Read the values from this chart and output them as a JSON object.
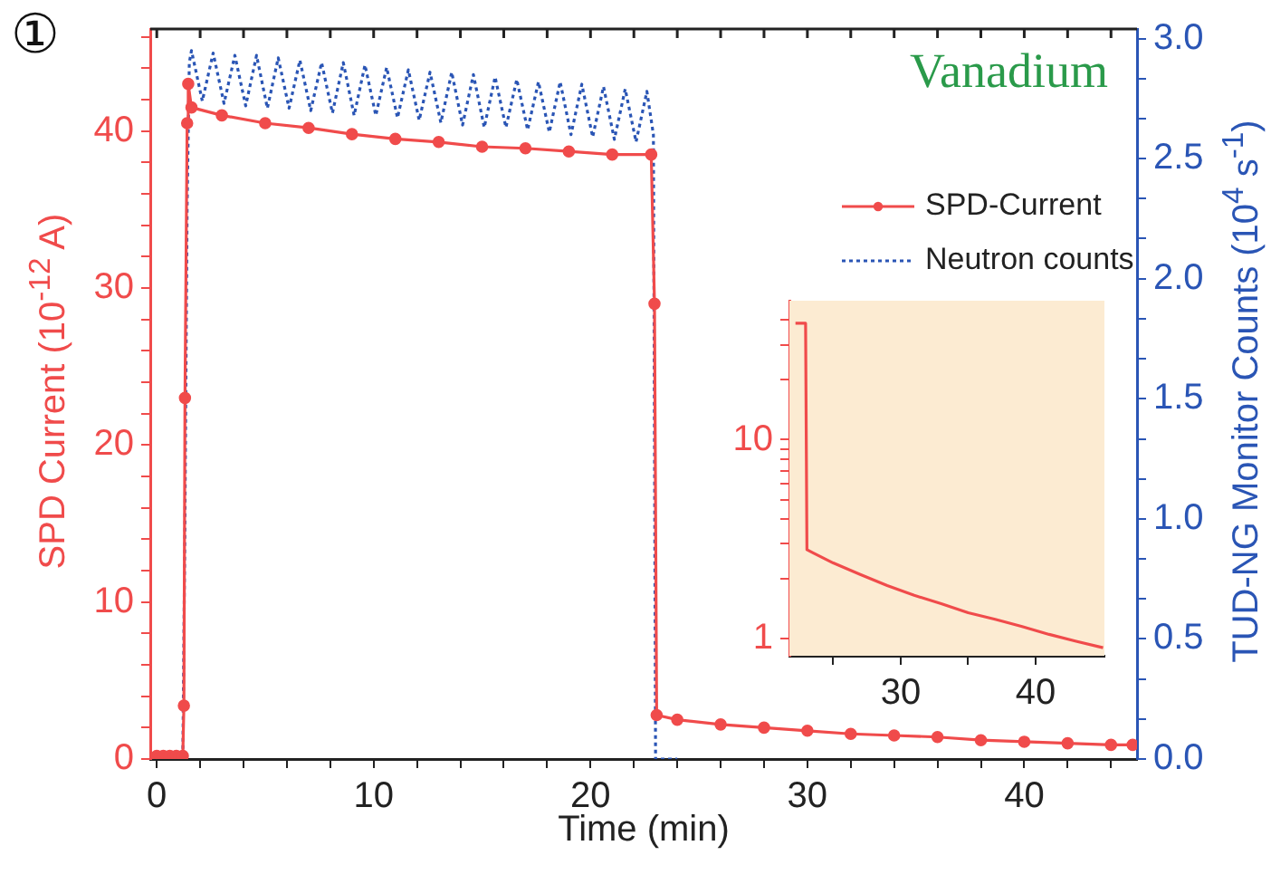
{
  "chart_data": [
    {
      "type": "line",
      "xlabel": "Time (min)",
      "ylabel": "SPD Current (10$^{-12}$ A)",
      "y2label": "TUD-NG Monitor Counts (10$^{4}$ s$^{-1}$)",
      "annotations": [
        "①",
        "Vanadium"
      ],
      "legend": "top right",
      "xlim": [
        -0.3,
        45.2
      ],
      "xticks": [
        0,
        {
          "value": 2,
          "label": null
        },
        {
          "value": 4,
          "label": null
        },
        {
          "value": 6,
          "label": null
        },
        {
          "value": 8,
          "label": null
        },
        10,
        {
          "value": 12,
          "label": null
        },
        {
          "value": 14,
          "label": null
        },
        {
          "value": 16,
          "label": null
        },
        {
          "value": 18,
          "label": null
        },
        20,
        {
          "value": 22,
          "label": null
        },
        {
          "value": 24,
          "label": null
        },
        {
          "value": 26,
          "label": null
        },
        {
          "value": 28,
          "label": null
        },
        30,
        {
          "value": 32,
          "label": null
        },
        {
          "value": 34,
          "label": null
        },
        {
          "value": 36,
          "label": null
        },
        {
          "value": 38,
          "label": null
        },
        40,
        {
          "value": 42,
          "label": null
        },
        {
          "value": 44,
          "label": null
        }
      ],
      "ylim": [
        0,
        46.5
      ],
      "yticks": [
        0,
        {
          "value": 2,
          "label": null
        },
        {
          "value": 4,
          "label": null
        },
        {
          "value": 6,
          "label": null
        },
        {
          "value": 8,
          "label": null
        },
        10,
        {
          "value": 12,
          "label": null
        },
        {
          "value": 14,
          "label": null
        },
        {
          "value": 16,
          "label": null
        },
        {
          "value": 18,
          "label": null
        },
        20,
        {
          "value": 22,
          "label": null
        },
        {
          "value": 24,
          "label": null
        },
        {
          "value": 26,
          "label": null
        },
        {
          "value": 28,
          "label": null
        },
        30,
        {
          "value": 32,
          "label": null
        },
        {
          "value": 34,
          "label": null
        },
        {
          "value": 36,
          "label": null
        },
        {
          "value": 38,
          "label": null
        },
        40,
        {
          "value": 42,
          "label": null
        },
        {
          "value": 44,
          "label": null
        },
        {
          "value": 46,
          "label": null
        }
      ],
      "y2lim": [
        0,
        3.04
      ],
      "y2ticks": [
        {
          "value": 0,
          "label": "0.0"
        },
        {
          "value": 0.167,
          "label": null
        },
        {
          "value": 0.333,
          "label": null
        },
        {
          "value": 0.5,
          "label": "0.5"
        },
        {
          "value": 0.667,
          "label": null
        },
        {
          "value": 0.833,
          "label": null
        },
        {
          "value": 1,
          "label": "1.0"
        },
        {
          "value": 1.167,
          "label": null
        },
        {
          "value": 1.333,
          "label": null
        },
        {
          "value": 1.5,
          "label": "1.5"
        },
        {
          "value": 1.667,
          "label": null
        },
        {
          "value": 1.833,
          "label": null
        },
        {
          "value": 2,
          "label": "2.0"
        },
        {
          "value": 2.167,
          "label": null
        },
        {
          "value": 2.333,
          "label": null
        },
        {
          "value": 2.5,
          "label": "2.5"
        },
        {
          "value": 2.667,
          "label": null
        },
        {
          "value": 2.833,
          "label": null
        },
        {
          "value": 3,
          "label": "3.0"
        }
      ],
      "series": [
        {
          "name": "SPD-Current",
          "color": "#f04b4b",
          "marker": "circle",
          "x": [
            0,
            0.3,
            0.6,
            0.9,
            1.2,
            1.25,
            1.3,
            1.4,
            1.45,
            1.6,
            3,
            5,
            7,
            9,
            11,
            13,
            15,
            17,
            19,
            21,
            22.8,
            22.95,
            23.05,
            24,
            26,
            28,
            30,
            32,
            34,
            36,
            38,
            40,
            42,
            44,
            45
          ],
          "values": [
            0.2,
            0.2,
            0.2,
            0.2,
            0.2,
            3.4,
            23,
            40.5,
            43,
            41.5,
            41,
            40.5,
            40.2,
            39.8,
            39.5,
            39.3,
            39,
            38.9,
            38.7,
            38.5,
            38.5,
            29,
            2.8,
            2.5,
            2.2,
            2,
            1.8,
            1.6,
            1.5,
            1.4,
            1.2,
            1.1,
            1,
            0.9,
            0.9
          ]
        },
        {
          "name": "Neutron counts",
          "color": "#2a55b5",
          "axis": "y2",
          "line_style": "dotted",
          "marker": "none",
          "x": [
            0,
            1.2,
            1.3,
            1.4,
            1.5,
            1.6,
            2.1,
            2.6,
            3.1,
            3.6,
            4.1,
            4.6,
            5.1,
            5.6,
            6.1,
            6.6,
            7.1,
            7.6,
            8.1,
            8.6,
            9.1,
            9.6,
            10.1,
            10.6,
            11.1,
            11.6,
            12.1,
            12.6,
            13.1,
            13.6,
            14.1,
            14.6,
            15.1,
            15.6,
            16.1,
            16.6,
            17.1,
            17.6,
            18.1,
            18.6,
            19.1,
            19.6,
            20.1,
            20.6,
            21.1,
            21.6,
            22.1,
            22.6,
            22.9,
            23,
            24
          ],
          "values": [
            0,
            0,
            1,
            2.3,
            2.9,
            2.95,
            2.74,
            2.94,
            2.73,
            2.93,
            2.72,
            2.93,
            2.71,
            2.92,
            2.71,
            2.91,
            2.7,
            2.9,
            2.69,
            2.9,
            2.68,
            2.89,
            2.68,
            2.88,
            2.67,
            2.87,
            2.66,
            2.86,
            2.65,
            2.86,
            2.64,
            2.85,
            2.63,
            2.84,
            2.63,
            2.83,
            2.62,
            2.82,
            2.61,
            2.82,
            2.6,
            2.81,
            2.59,
            2.8,
            2.58,
            2.79,
            2.57,
            2.78,
            2.6,
            0,
            0
          ]
        }
      ]
    },
    {
      "type": "line",
      "log": "y",
      "xlim": [
        21.75,
        45.1
      ],
      "xticks": [
        {
          "value": 25,
          "label": null
        },
        30,
        {
          "value": 35,
          "label": null
        },
        40
      ],
      "ylim": [
        0.82,
        50
      ],
      "yticks": [
        1,
        {
          "value": 2,
          "label": null
        },
        {
          "value": 3,
          "label": null
        },
        {
          "value": 4,
          "label": null
        },
        {
          "value": 5,
          "label": null
        },
        {
          "value": 6,
          "label": null
        },
        {
          "value": 7,
          "label": null
        },
        {
          "value": 8,
          "label": null
        },
        {
          "value": 9,
          "label": null
        },
        10,
        {
          "value": 20,
          "label": null
        },
        {
          "value": 30,
          "label": null
        },
        {
          "value": 40,
          "label": null
        }
      ],
      "series": [
        {
          "color": "#f04b4b",
          "x": [
            22.2,
            22.95,
            23.05,
            23.5,
            25,
            27,
            29,
            31,
            33,
            35,
            37,
            39,
            41,
            43,
            45
          ],
          "values": [
            38.5,
            38.5,
            2.8,
            2.7,
            2.4,
            2.1,
            1.85,
            1.65,
            1.5,
            1.35,
            1.25,
            1.15,
            1.05,
            0.97,
            0.9
          ]
        }
      ]
    }
  ]
}
